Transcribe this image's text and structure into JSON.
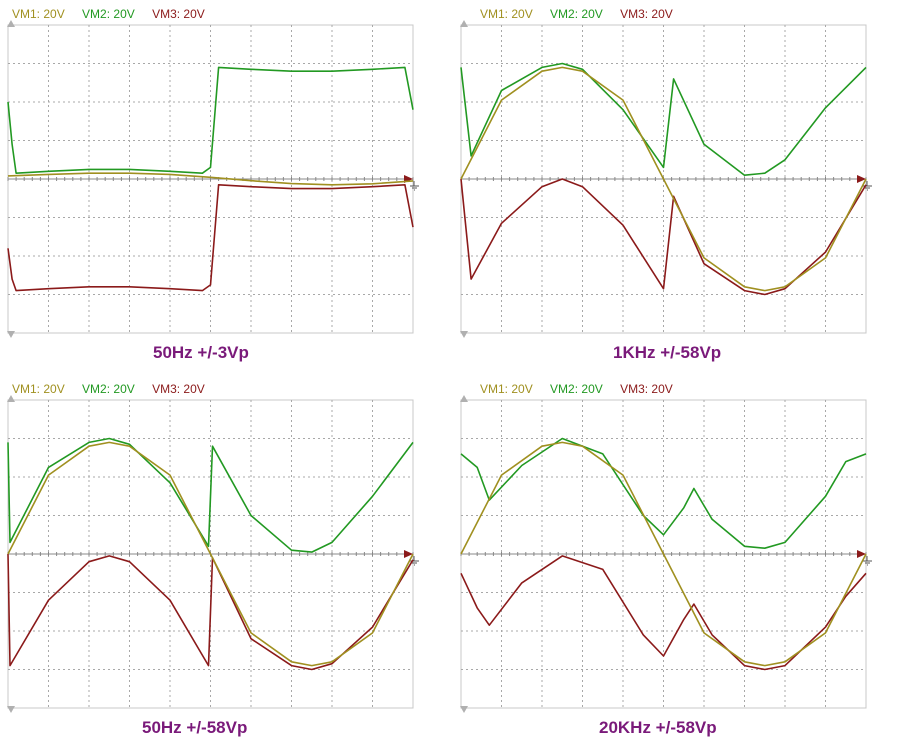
{
  "colors": {
    "vm1": "#a09020",
    "vm2": "#229922",
    "vm3": "#8b1a1a",
    "grid": "#a8a8a8",
    "frame": "#c8c8c8",
    "caption": "#7a1a7a"
  },
  "legend": [
    "VM1: 20V",
    "VM2: 20V",
    "VM3: 20V"
  ],
  "chart_data": [
    {
      "type": "line",
      "title": "50Hz +/-3Vp",
      "volts_per_div": 20,
      "divisions": {
        "x": 10,
        "y": 8
      },
      "series": [
        {
          "name": "VM1: 20V",
          "x": [
            0,
            1,
            2,
            3,
            4,
            5,
            6,
            7,
            8,
            9,
            10
          ],
          "y": [
            1.6,
            2.4,
            3.0,
            3.0,
            2.4,
            0.9,
            -0.9,
            -2.4,
            -3.0,
            -2.5,
            -1.0
          ]
        },
        {
          "name": "VM2: 20V",
          "x": [
            0,
            0.1,
            0.2,
            1,
            2,
            3,
            4,
            4.8,
            5.0,
            5.2,
            6,
            7,
            8,
            9,
            9.8,
            10
          ],
          "y": [
            40,
            18,
            3,
            4,
            5,
            5,
            4,
            3,
            6,
            58,
            57,
            56,
            56,
            57,
            58,
            36
          ]
        },
        {
          "name": "VM3: 20V",
          "x": [
            0,
            0.1,
            0.2,
            1,
            2,
            3,
            4,
            4.8,
            5.0,
            5.2,
            6,
            7,
            8,
            9,
            9.8,
            10
          ],
          "y": [
            -36,
            -52,
            -58,
            -57,
            -56,
            -56,
            -57,
            -58,
            -55,
            -3,
            -4,
            -5,
            -5,
            -4,
            -3,
            -25
          ]
        }
      ]
    },
    {
      "type": "line",
      "title": "1KHz +/-58Vp",
      "volts_per_div": 20,
      "divisions": {
        "x": 10,
        "y": 8
      },
      "series": [
        {
          "name": "VM1: 20V",
          "x": [
            0,
            1,
            2,
            2.5,
            3,
            4,
            5,
            6,
            7,
            7.5,
            8,
            9,
            10
          ],
          "y": [
            0,
            41,
            56,
            58,
            56,
            41,
            0,
            -41,
            -56,
            -58,
            -56,
            -41,
            0
          ]
        },
        {
          "name": "VM2: 20V",
          "x": [
            0,
            0.25,
            1,
            2,
            2.5,
            3,
            4,
            5,
            5.25,
            6,
            7,
            7.5,
            8,
            9,
            10
          ],
          "y": [
            58,
            12,
            46,
            58,
            60,
            57,
            36,
            6,
            52,
            18,
            2,
            3,
            10,
            37,
            58
          ]
        },
        {
          "name": "VM3: 20V",
          "x": [
            0,
            0.25,
            1,
            2,
            2.5,
            3,
            4,
            5,
            5.25,
            6,
            7,
            7.5,
            8,
            9,
            10
          ],
          "y": [
            0,
            -52,
            -23,
            -4,
            0,
            -4,
            -24,
            -57,
            -9,
            -44,
            -58,
            -60,
            -57,
            -38,
            -3
          ]
        }
      ]
    },
    {
      "type": "line",
      "title": "50Hz +/-58Vp",
      "volts_per_div": 20,
      "divisions": {
        "x": 10,
        "y": 8
      },
      "series": [
        {
          "name": "VM1: 20V",
          "x": [
            0,
            1,
            2,
            2.5,
            3,
            4,
            5,
            6,
            7,
            7.5,
            8,
            9,
            10
          ],
          "y": [
            0,
            41,
            56,
            58,
            56,
            41,
            0,
            -41,
            -56,
            -58,
            -56,
            -41,
            0
          ]
        },
        {
          "name": "VM2: 20V",
          "x": [
            0,
            0.05,
            1,
            2,
            2.5,
            3,
            4,
            4.95,
            5.05,
            6,
            7,
            7.5,
            8,
            9,
            10
          ],
          "y": [
            58,
            6,
            45,
            58,
            60,
            57,
            37,
            4,
            56,
            20,
            2,
            1,
            6,
            30,
            58
          ]
        },
        {
          "name": "VM3: 20V",
          "x": [
            0,
            0.05,
            1,
            2,
            2.5,
            3,
            4,
            4.95,
            5.05,
            6,
            7,
            7.5,
            8,
            9,
            10
          ],
          "y": [
            0,
            -58,
            -24,
            -4,
            -1,
            -4,
            -24,
            -58,
            -2,
            -44,
            -58,
            -60,
            -57,
            -38,
            -3
          ]
        }
      ]
    },
    {
      "type": "line",
      "title": "20KHz +/-58Vp",
      "volts_per_div": 20,
      "divisions": {
        "x": 10,
        "y": 8
      },
      "series": [
        {
          "name": "VM1: 20V",
          "x": [
            0,
            1,
            2,
            2.5,
            3,
            4,
            5,
            6,
            7,
            7.5,
            8,
            9,
            10
          ],
          "y": [
            0,
            41,
            56,
            58,
            56,
            41,
            0,
            -41,
            -56,
            -58,
            -56,
            -41,
            0
          ]
        },
        {
          "name": "VM2: 20V",
          "x": [
            0,
            0.4,
            0.7,
            1.5,
            2.5,
            3.5,
            4.5,
            5,
            5.5,
            5.75,
            6.2,
            7,
            7.5,
            8,
            9,
            9.5,
            10
          ],
          "y": [
            52,
            45,
            28,
            46,
            60,
            52,
            20,
            10,
            24,
            34,
            18,
            4,
            3,
            6,
            30,
            48,
            52
          ]
        },
        {
          "name": "VM3: 20V",
          "x": [
            0,
            0.4,
            0.7,
            1.5,
            2.5,
            3.5,
            4.5,
            5,
            5.5,
            5.75,
            6.2,
            7,
            7.5,
            8,
            9,
            9.5,
            10
          ],
          "y": [
            -10,
            -28,
            -37,
            -15,
            -1,
            -8,
            -42,
            -53,
            -34,
            -26,
            -42,
            -58,
            -60,
            -58,
            -38,
            -22,
            -10
          ]
        }
      ]
    }
  ]
}
